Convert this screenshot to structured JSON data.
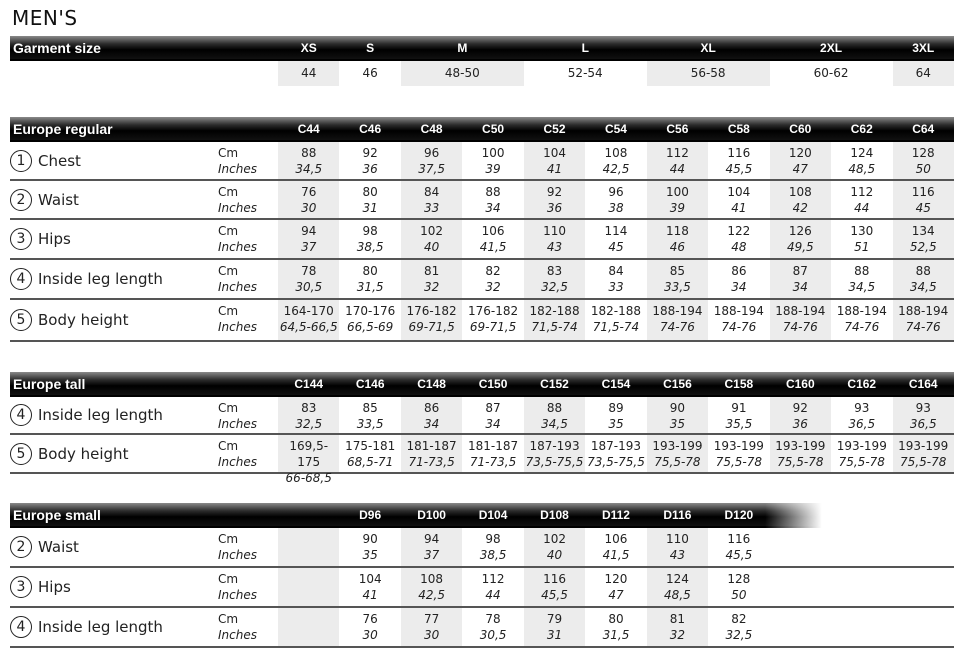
{
  "title": "MEN'S",
  "unit_cm": "Cm",
  "unit_in": "Inches",
  "garment": {
    "title": "Garment size",
    "sizes": [
      {
        "label": "XS",
        "value": "44",
        "span": 1
      },
      {
        "label": "S",
        "value": "46",
        "span": 1
      },
      {
        "label": "M",
        "value": "48-50",
        "span": 2
      },
      {
        "label": "L",
        "value": "52-54",
        "span": 2
      },
      {
        "label": "XL",
        "value": "56-58",
        "span": 2
      },
      {
        "label": "2XL",
        "value": "60-62",
        "span": 2
      },
      {
        "label": "3XL",
        "value": "64",
        "span": 1
      }
    ]
  },
  "sections": [
    {
      "title": "Europe regular",
      "offset": 0,
      "columns": [
        "C44",
        "C46",
        "C48",
        "C50",
        "C52",
        "C54",
        "C56",
        "C58",
        "C60",
        "C62",
        "C64"
      ],
      "rows": [
        {
          "num": "1",
          "label": "Chest",
          "cm": [
            "88",
            "92",
            "96",
            "100",
            "104",
            "108",
            "112",
            "116",
            "120",
            "124",
            "128"
          ],
          "in": [
            "34,5",
            "36",
            "37,5",
            "39",
            "41",
            "42,5",
            "44",
            "45,5",
            "47",
            "48,5",
            "50"
          ]
        },
        {
          "num": "2",
          "label": "Waist",
          "cm": [
            "76",
            "80",
            "84",
            "88",
            "92",
            "96",
            "100",
            "104",
            "108",
            "112",
            "116"
          ],
          "in": [
            "30",
            "31",
            "33",
            "34",
            "36",
            "38",
            "39",
            "41",
            "42",
            "44",
            "45"
          ]
        },
        {
          "num": "3",
          "label": "Hips",
          "cm": [
            "94",
            "98",
            "102",
            "106",
            "110",
            "114",
            "118",
            "122",
            "126",
            "130",
            "134"
          ],
          "in": [
            "37",
            "38,5",
            "40",
            "41,5",
            "43",
            "45",
            "46",
            "48",
            "49,5",
            "51",
            "52,5"
          ]
        },
        {
          "num": "4",
          "label": "Inside leg length",
          "cm": [
            "78",
            "80",
            "81",
            "82",
            "83",
            "84",
            "85",
            "86",
            "87",
            "88",
            "88"
          ],
          "in": [
            "30,5",
            "31,5",
            "32",
            "32",
            "32,5",
            "33",
            "33,5",
            "34",
            "34",
            "34,5",
            "34,5"
          ]
        },
        {
          "num": "5",
          "label": "Body height",
          "cm": [
            "164-170",
            "170-176",
            "176-182",
            "176-182",
            "182-188",
            "182-188",
            "188-194",
            "188-194",
            "188-194",
            "188-194",
            "188-194"
          ],
          "in": [
            "64,5-66,5",
            "66,5-69",
            "69-71,5",
            "69-71,5",
            "71,5-74",
            "71,5-74",
            "74-76",
            "74-76",
            "74-76",
            "74-76",
            "74-76"
          ]
        }
      ]
    },
    {
      "title": "Europe tall",
      "offset": 0,
      "columns": [
        "C144",
        "C146",
        "C148",
        "C150",
        "C152",
        "C154",
        "C156",
        "C158",
        "C160",
        "C162",
        "C164"
      ],
      "rows": [
        {
          "num": "4",
          "label": "Inside leg length",
          "cm": [
            "83",
            "85",
            "86",
            "87",
            "88",
            "89",
            "90",
            "91",
            "92",
            "93",
            "93"
          ],
          "in": [
            "32,5",
            "33,5",
            "34",
            "34",
            "34,5",
            "35",
            "35",
            "35,5",
            "36",
            "36,5",
            "36,5"
          ]
        },
        {
          "num": "5",
          "label": "Body height",
          "cm": [
            "169,5-175",
            "175-181",
            "181-187",
            "181-187",
            "187-193",
            "187-193",
            "193-199",
            "193-199",
            "193-199",
            "193-199",
            "193-199"
          ],
          "in": [
            "66-68,5",
            "68,5-71",
            "71-73,5",
            "71-73,5",
            "73,5-75,5",
            "73,5-75,5",
            "75,5-78",
            "75,5-78",
            "75,5-78",
            "75,5-78",
            "75,5-78"
          ]
        }
      ]
    },
    {
      "title": "Europe small",
      "offset": 1,
      "columns": [
        "D96",
        "D100",
        "D104",
        "D108",
        "D112",
        "D116",
        "D120"
      ],
      "rows": [
        {
          "num": "2",
          "label": "Waist",
          "cm": [
            "90",
            "94",
            "98",
            "102",
            "106",
            "110",
            "116"
          ],
          "in": [
            "35",
            "37",
            "38,5",
            "40",
            "41,5",
            "43",
            "45,5"
          ]
        },
        {
          "num": "3",
          "label": "Hips",
          "cm": [
            "104",
            "108",
            "112",
            "116",
            "120",
            "124",
            "128"
          ],
          "in": [
            "41",
            "42,5",
            "44",
            "45,5",
            "47",
            "48,5",
            "50"
          ]
        },
        {
          "num": "4",
          "label": "Inside leg length",
          "cm": [
            "76",
            "77",
            "78",
            "79",
            "80",
            "81",
            "82"
          ],
          "in": [
            "30",
            "30",
            "30,5",
            "31",
            "31,5",
            "32",
            "32,5"
          ]
        }
      ]
    }
  ]
}
